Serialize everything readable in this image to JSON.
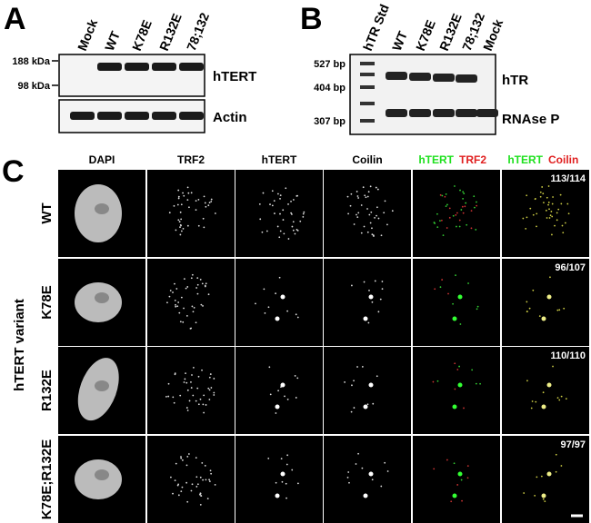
{
  "panel_a": {
    "label": "A",
    "lanes": [
      "Mock",
      "WT",
      "K78E",
      "R132E",
      "78;132"
    ],
    "markers": [
      "188 kDa",
      "98 kDa"
    ],
    "blots": [
      "hTERT",
      "Actin"
    ]
  },
  "panel_b": {
    "label": "B",
    "lanes": [
      "hTR Std",
      "WT",
      "K78E",
      "R132E",
      "78;132",
      "Mock"
    ],
    "markers": [
      "527 bp",
      "404 bp",
      "307 bp"
    ],
    "bands": [
      "hTR",
      "RNAse P"
    ]
  },
  "panel_c": {
    "label": "C",
    "axis_label": "hTERT variant",
    "columns": [
      {
        "text": "DAPI"
      },
      {
        "text": "TRF2"
      },
      {
        "text": "hTERT"
      },
      {
        "text": "Coilin"
      },
      {
        "green": "hTERT",
        "red": "TRF2"
      },
      {
        "green": "hTERT",
        "red": "Coilin"
      }
    ],
    "rows": [
      {
        "label": "WT",
        "count": "113/114"
      },
      {
        "label": "K78E",
        "count": "96/107"
      },
      {
        "label": "R132E",
        "count": "110/110"
      },
      {
        "label": "K78E;R132E",
        "count": "97/97"
      }
    ]
  }
}
